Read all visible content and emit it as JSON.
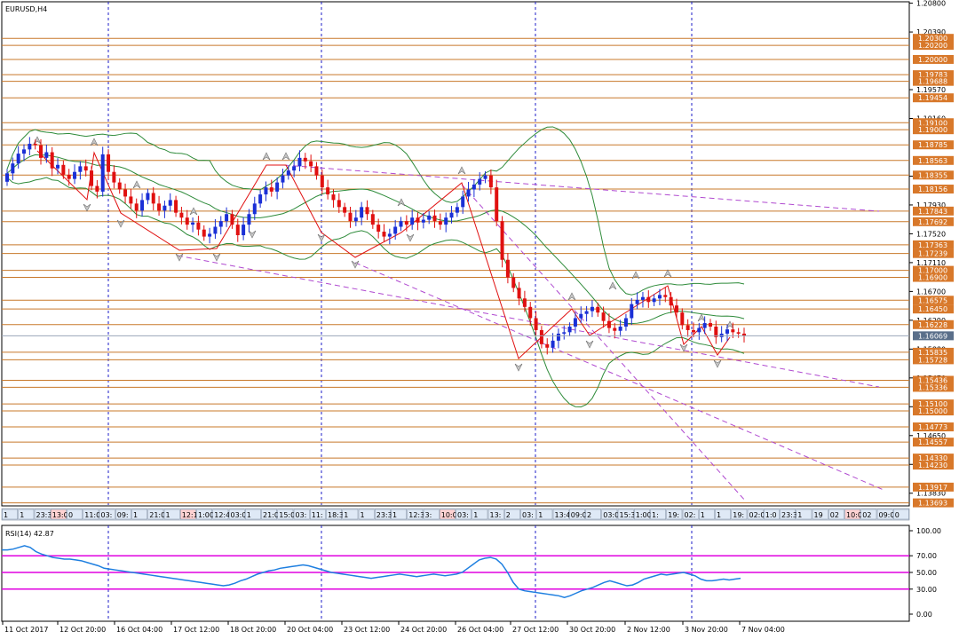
{
  "chart_title": "EURUSD,H4",
  "rsi_title": "RSI(14) 42.87",
  "colors": {
    "bull": "#1a2fd6",
    "bear": "#e01010",
    "level": "#c8782a",
    "level_tag_bg": "#d8782a",
    "bb": "#2e8b3a",
    "trend": "#b04ad0",
    "rsi_line": "#1e7fe0",
    "rsi_level": "#e000e0",
    "grid": "#1e1ec8",
    "current_tag_bg": "#5a6f8a"
  },
  "chart_data": {
    "type": "candlestick",
    "symbol": "EURUSD",
    "timeframe": "H4",
    "ylim": [
      1.1365,
      1.2082
    ],
    "price_ticks": [
      "1.20800",
      "1.20390",
      "1.19570",
      "1.19160",
      "1.18340",
      "1.17930",
      "1.17520",
      "1.17110",
      "1.16700",
      "1.16290",
      "1.15880",
      "1.15470",
      "1.15060",
      "1.14650",
      "1.14240",
      "1.13830"
    ],
    "levels": [
      "1.20300",
      "1.20200",
      "1.20000",
      "1.19783",
      "1.19688",
      "1.19454",
      "1.19100",
      "1.19000",
      "1.18785",
      "1.18563",
      "1.18355",
      "1.18156",
      "1.17843",
      "1.17692",
      "1.17363",
      "1.17239",
      "1.17000",
      "1.16900",
      "1.16575",
      "1.16450",
      "1.16228",
      "1.15835",
      "1.15728",
      "1.15436",
      "1.15336",
      "1.15100",
      "1.15000",
      "1.14773",
      "1.14557",
      "1.14330",
      "1.14230",
      "1.13917",
      "1.13693"
    ],
    "current_price": "1.16069",
    "x_labels": [
      "11 Oct 2017",
      "12 Oct 20:00",
      "16 Oct 04:00",
      "17 Oct 12:00",
      "18 Oct 20:00",
      "20 Oct 04:00",
      "23 Oct 12:00",
      "24 Oct 20:00",
      "26 Oct 04:00",
      "27 Oct 12:00",
      "30 Oct 20:00",
      "2 Nov 12:00",
      "3 Nov 20:00",
      "7 Nov 04:00"
    ],
    "x_strip": [
      "1",
      "1",
      "23:30",
      "13:00",
      "0",
      "11:05",
      "03:",
      "09:",
      "1",
      "21:00",
      "1",
      "12:10",
      "1:00",
      "12:4",
      "03:00",
      "1",
      "21:00",
      "15:00",
      "03:",
      "11:",
      "18:30",
      "1",
      "1",
      "23:30",
      "1",
      "12:35",
      "3:",
      "10:00",
      "03:",
      "1",
      "13:",
      "2",
      "03:",
      "1",
      "13:4",
      "09:00",
      "2",
      "03:00",
      "15:30",
      "1:00",
      "1:",
      "19:",
      "02:",
      "1",
      "1",
      "19:",
      "02:00",
      "1:0",
      "23:30",
      "1",
      "19",
      "02",
      "10:00",
      "02",
      "09:00",
      "0"
    ],
    "closes": [
      1.1838,
      1.1852,
      1.1866,
      1.1872,
      1.188,
      1.1878,
      1.186,
      1.1868,
      1.1845,
      1.185,
      1.1836,
      1.183,
      1.184,
      1.1848,
      1.1842,
      1.182,
      1.1812,
      1.1865,
      1.184,
      1.1825,
      1.1815,
      1.1805,
      1.1795,
      1.1785,
      1.18,
      1.181,
      1.1795,
      1.1785,
      1.1792,
      1.18,
      1.1782,
      1.1775,
      1.1765,
      1.1768,
      1.1758,
      1.1748,
      1.1752,
      1.1762,
      1.177,
      1.178,
      1.1765,
      1.175,
      1.1765,
      1.178,
      1.1795,
      1.1808,
      1.1818,
      1.1812,
      1.1825,
      1.1835,
      1.1842,
      1.1848,
      1.186,
      1.1855,
      1.1848,
      1.1835,
      1.1818,
      1.1808,
      1.18,
      1.179,
      1.1782,
      1.177,
      1.1775,
      1.179,
      1.178,
      1.1765,
      1.1755,
      1.1748,
      1.1752,
      1.1762,
      1.177,
      1.1765,
      1.1775,
      1.1768,
      1.1772,
      1.1778,
      1.177,
      1.1765,
      1.1775,
      1.1782,
      1.179,
      1.1805,
      1.1815,
      1.1822,
      1.183,
      1.1835,
      1.1818,
      1.177,
      1.1715,
      1.169,
      1.1675,
      1.166,
      1.1648,
      1.1632,
      1.1615,
      1.1595,
      1.159,
      1.16,
      1.161,
      1.1612,
      1.162,
      1.1632,
      1.1638,
      1.1642,
      1.1648,
      1.164,
      1.1628,
      1.1618,
      1.1614,
      1.162,
      1.1632,
      1.1652,
      1.1658,
      1.1662,
      1.1655,
      1.166,
      1.1665,
      1.1662,
      1.165,
      1.164,
      1.1622,
      1.1615,
      1.1612,
      1.1618,
      1.1625,
      1.162,
      1.1605,
      1.161,
      1.1616,
      1.1612,
      1.161,
      1.1607
    ],
    "rsi": {
      "title": "RSI(14) 42.87",
      "value": 42.87,
      "levels": [
        70,
        50,
        30
      ],
      "ylim": [
        0,
        100
      ],
      "ticks": [
        "100.00",
        "70.00",
        "50.00",
        "30.00",
        "0.00"
      ],
      "values": [
        77,
        77,
        78,
        80,
        82,
        80,
        75,
        72,
        70,
        68,
        67,
        66,
        66,
        65,
        64,
        62,
        60,
        58,
        55,
        54,
        53,
        52,
        51,
        50,
        49,
        48,
        47,
        46,
        45,
        44,
        43,
        42,
        41,
        40,
        39,
        38,
        37,
        36,
        35,
        34,
        35,
        37,
        40,
        42,
        45,
        48,
        50,
        52,
        53,
        55,
        56,
        57,
        58,
        59,
        58,
        56,
        54,
        52,
        50,
        49,
        48,
        47,
        46,
        45,
        44,
        43,
        44,
        45,
        46,
        47,
        48,
        47,
        46,
        45,
        46,
        47,
        48,
        47,
        46,
        47,
        48,
        50,
        55,
        60,
        65,
        67,
        68,
        66,
        60,
        50,
        38,
        30,
        28,
        27,
        26,
        25,
        24,
        23,
        22,
        20,
        22,
        25,
        28,
        30,
        32,
        35,
        38,
        40,
        38,
        36,
        34,
        35,
        38,
        42,
        44,
        46,
        48,
        47,
        48,
        49,
        50,
        48,
        46,
        42,
        40,
        40,
        41,
        42,
        41,
        42,
        43
      ]
    }
  }
}
